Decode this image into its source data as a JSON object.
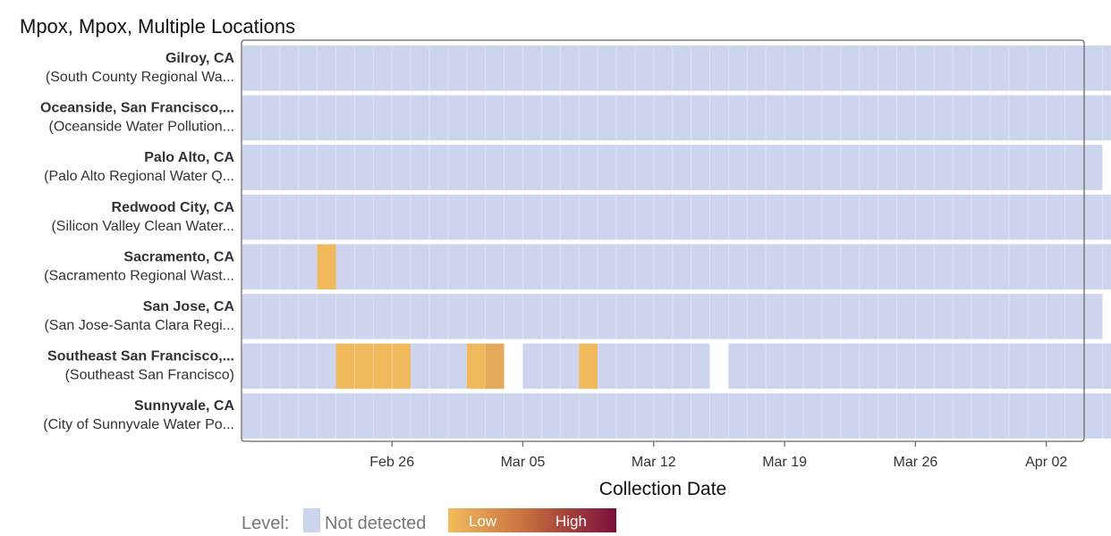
{
  "chart_data": {
    "type": "heatmap",
    "title": "Mpox, Mpox, Multiple Locations",
    "xlabel": "Collection Date",
    "x_range": [
      "2023-02-18",
      "2023-04-06"
    ],
    "x_ticks": [
      {
        "date": "2023-02-26",
        "label": "Feb 26"
      },
      {
        "date": "2023-03-05",
        "label": "Mar 05"
      },
      {
        "date": "2023-03-12",
        "label": "Mar 12"
      },
      {
        "date": "2023-03-19",
        "label": "Mar 19"
      },
      {
        "date": "2023-03-26",
        "label": "Mar 26"
      },
      {
        "date": "2023-04-02",
        "label": "Apr 02"
      }
    ],
    "rows": [
      {
        "name": "Gilroy, CA",
        "sub": "(South County Regional Wa...",
        "segments": [
          {
            "start": "2023-02-18",
            "end": "2023-04-06",
            "level": "not_detected"
          }
        ]
      },
      {
        "name": "Oceanside, San Francisco,...",
        "sub": "(Oceanside Water Pollution...",
        "segments": [
          {
            "start": "2023-02-18",
            "end": "2023-04-06",
            "level": "not_detected"
          }
        ]
      },
      {
        "name": "Palo Alto, CA",
        "sub": "(Palo Alto Regional Water Q...",
        "segments": [
          {
            "start": "2023-02-18",
            "end": "2023-04-05",
            "level": "not_detected"
          }
        ]
      },
      {
        "name": "Redwood City, CA",
        "sub": "(Silicon Valley Clean Water...",
        "segments": [
          {
            "start": "2023-02-18",
            "end": "2023-04-06",
            "level": "not_detected"
          }
        ]
      },
      {
        "name": "Sacramento, CA",
        "sub": "(Sacramento Regional Wast...",
        "segments": [
          {
            "start": "2023-02-18",
            "end": "2023-02-22",
            "level": "not_detected"
          },
          {
            "start": "2023-02-22",
            "end": "2023-02-23",
            "level": "low"
          },
          {
            "start": "2023-02-23",
            "end": "2023-04-06",
            "level": "not_detected"
          }
        ]
      },
      {
        "name": "San Jose, CA",
        "sub": "(San Jose-Santa Clara Regi...",
        "segments": [
          {
            "start": "2023-02-18",
            "end": "2023-04-05",
            "level": "not_detected"
          }
        ]
      },
      {
        "name": "Southeast San Francisco,...",
        "sub": "(Southeast San Francisco)",
        "segments": [
          {
            "start": "2023-02-18",
            "end": "2023-02-23",
            "level": "not_detected"
          },
          {
            "start": "2023-02-23",
            "end": "2023-02-27",
            "level": "low"
          },
          {
            "start": "2023-02-27",
            "end": "2023-03-02",
            "level": "not_detected"
          },
          {
            "start": "2023-03-02",
            "end": "2023-03-03",
            "level": "low"
          },
          {
            "start": "2023-03-03",
            "end": "2023-03-04",
            "level": "low_plus"
          },
          {
            "start": "2023-03-05",
            "end": "2023-03-08",
            "level": "not_detected"
          },
          {
            "start": "2023-03-08",
            "end": "2023-03-09",
            "level": "low"
          },
          {
            "start": "2023-03-09",
            "end": "2023-03-15",
            "level": "not_detected"
          },
          {
            "start": "2023-03-16",
            "end": "2023-04-06",
            "level": "not_detected"
          }
        ]
      },
      {
        "name": "Sunnyvale, CA",
        "sub": "(City of Sunnyvale Water Po...",
        "segments": [
          {
            "start": "2023-02-18",
            "end": "2023-04-06",
            "level": "not_detected"
          }
        ]
      }
    ],
    "legend": {
      "title": "Level:",
      "not_detected_label": "Not detected",
      "low_label": "Low",
      "high_label": "High"
    },
    "colors": {
      "not_detected": "#cdd5ee",
      "low": "#f0b95c",
      "low_plus": "#e3a959",
      "high": "#7a0f3a",
      "frame": "#666666"
    }
  }
}
